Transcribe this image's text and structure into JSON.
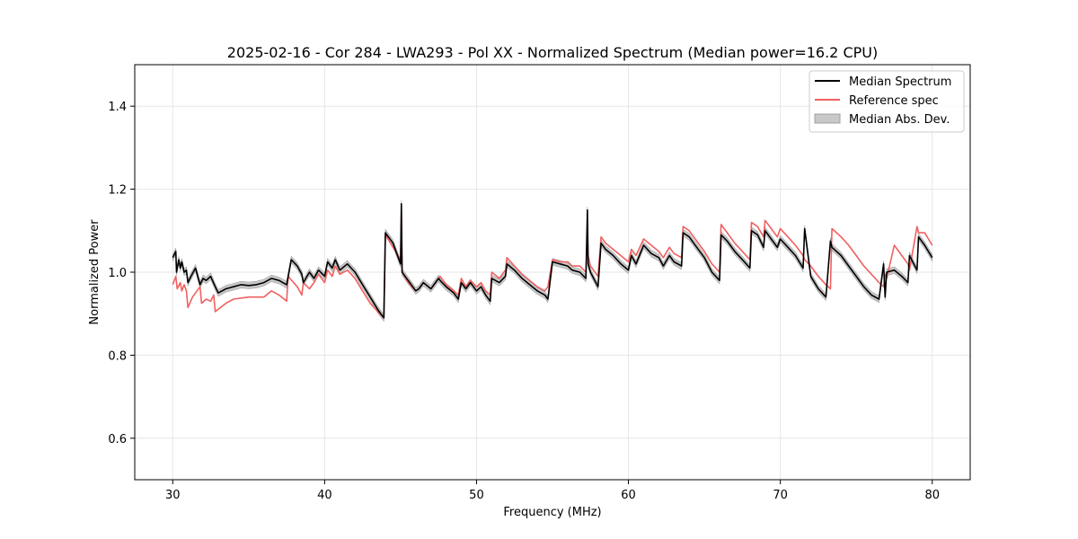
{
  "chart_data": {
    "type": "line",
    "title": "2025-02-16 - Cor 284 - LWA293 - Pol XX - Normalized Spectrum (Median power=16.2 CPU)",
    "xlabel": "Frequency (MHz)",
    "ylabel": "Normalized Power",
    "xlim": [
      27.5,
      82.5
    ],
    "ylim": [
      0.5,
      1.5
    ],
    "x_ticks": [
      30,
      40,
      50,
      60,
      70,
      80
    ],
    "x_tick_labels": [
      "30",
      "40",
      "50",
      "60",
      "70",
      "80"
    ],
    "y_ticks": [
      0.6,
      0.8,
      1.0,
      1.2,
      1.4
    ],
    "y_tick_labels": [
      "0.6",
      "0.8",
      "1.0",
      "1.2",
      "1.4"
    ],
    "grid": true,
    "legend_position": "top-right",
    "legend": [
      "Median Spectrum",
      "Reference spec",
      "Median Abs. Dev."
    ],
    "colors": {
      "median": "#000000",
      "reference": "#f06060",
      "mad_fill": "#c8c8c8",
      "mad_edge": "#a0a0a0",
      "grid": "#e6e6e6"
    },
    "series": [
      {
        "name": "Median Spectrum",
        "x": [
          30.0,
          30.2,
          30.25,
          30.4,
          30.5,
          30.6,
          30.75,
          30.9,
          31.0,
          31.2,
          31.5,
          31.8,
          32.0,
          32.2,
          32.5,
          32.8,
          33.0,
          33.5,
          34.0,
          34.5,
          35.0,
          35.5,
          36.0,
          36.5,
          37.0,
          37.5,
          37.8,
          38.2,
          38.5,
          38.6,
          39.0,
          39.3,
          39.6,
          40.0,
          40.2,
          40.5,
          40.7,
          41.0,
          41.5,
          42.0,
          42.5,
          43.0,
          43.5,
          43.9,
          44.0,
          44.5,
          45.0,
          45.05,
          45.1,
          45.5,
          46.0,
          46.2,
          46.5,
          47.0,
          47.5,
          47.6,
          48.0,
          48.5,
          48.8,
          49.0,
          49.3,
          49.6,
          50.0,
          50.3,
          50.6,
          50.9,
          51.0,
          51.5,
          51.9,
          52.0,
          52.5,
          53.0,
          53.5,
          54.0,
          54.5,
          54.7,
          55.0,
          55.5,
          56.0,
          56.3,
          56.8,
          57.2,
          57.3,
          57.35,
          57.5,
          58.0,
          58.2,
          58.5,
          59.0,
          59.5,
          60.0,
          60.2,
          60.5,
          61.0,
          61.5,
          62.0,
          62.3,
          62.7,
          63.0,
          63.5,
          63.6,
          64.0,
          64.5,
          65.0,
          65.5,
          66.0,
          66.1,
          66.5,
          67.0,
          67.5,
          68.0,
          68.1,
          68.5,
          68.9,
          69.0,
          69.5,
          69.8,
          70.0,
          70.5,
          71.0,
          71.5,
          71.6,
          72.0,
          72.5,
          73.0,
          73.3,
          73.4,
          74.0,
          74.5,
          75.0,
          75.5,
          76.0,
          76.5,
          76.8,
          76.9,
          77.0,
          77.5,
          78.0,
          78.4,
          78.5,
          79.0,
          79.1,
          79.5,
          80.0
        ],
        "values": [
          1.035,
          1.05,
          1.0,
          1.03,
          1.01,
          1.025,
          1.0,
          1.005,
          0.975,
          0.99,
          1.01,
          0.97,
          0.985,
          0.98,
          0.99,
          0.965,
          0.95,
          0.96,
          0.965,
          0.97,
          0.968,
          0.97,
          0.975,
          0.985,
          0.98,
          0.97,
          1.03,
          1.015,
          0.995,
          0.975,
          1.0,
          0.985,
          1.005,
          0.99,
          1.025,
          1.01,
          1.03,
          1.005,
          1.02,
          1.0,
          0.97,
          0.94,
          0.91,
          0.89,
          1.095,
          1.07,
          1.02,
          1.165,
          1.0,
          0.98,
          0.955,
          0.96,
          0.975,
          0.96,
          0.985,
          0.98,
          0.965,
          0.95,
          0.935,
          0.975,
          0.96,
          0.975,
          0.955,
          0.965,
          0.945,
          0.93,
          0.985,
          0.975,
          0.99,
          1.02,
          1.005,
          0.985,
          0.97,
          0.955,
          0.945,
          0.935,
          1.025,
          1.02,
          1.015,
          1.005,
          1.0,
          0.985,
          1.15,
          1.02,
          1.0,
          0.965,
          1.07,
          1.055,
          1.04,
          1.02,
          1.005,
          1.04,
          1.02,
          1.065,
          1.045,
          1.035,
          1.015,
          1.04,
          1.025,
          1.015,
          1.095,
          1.085,
          1.06,
          1.035,
          1.0,
          0.98,
          1.09,
          1.075,
          1.05,
          1.03,
          1.01,
          1.1,
          1.09,
          1.06,
          1.1,
          1.075,
          1.06,
          1.08,
          1.06,
          1.04,
          1.01,
          1.105,
          0.99,
          0.96,
          0.94,
          1.075,
          1.06,
          1.04,
          1.015,
          0.99,
          0.965,
          0.945,
          0.935,
          1.02,
          0.94,
          1.0,
          1.005,
          0.99,
          0.975,
          1.04,
          1.005,
          1.085,
          1.065,
          1.035
        ]
      },
      {
        "name": "Reference spec",
        "x": [
          30.0,
          30.2,
          30.3,
          30.5,
          30.6,
          30.75,
          30.9,
          31.0,
          31.3,
          31.8,
          31.9,
          32.2,
          32.5,
          32.7,
          32.8,
          33.5,
          34.0,
          35.0,
          36.0,
          36.5,
          37.0,
          37.5,
          37.6,
          38.2,
          38.5,
          38.6,
          39.0,
          39.3,
          39.6,
          40.0,
          40.2,
          40.5,
          40.7,
          41.0,
          41.5,
          42.0,
          42.5,
          43.0,
          43.5,
          43.9,
          44.0,
          44.5,
          45.0,
          45.05,
          45.1,
          45.5,
          46.0,
          46.2,
          46.5,
          47.0,
          47.5,
          47.6,
          48.0,
          48.5,
          48.8,
          49.0,
          49.3,
          49.6,
          50.0,
          50.3,
          50.6,
          50.9,
          51.0,
          51.5,
          51.9,
          52.0,
          52.5,
          53.0,
          53.5,
          54.0,
          54.5,
          54.7,
          55.0,
          55.5,
          56.0,
          56.3,
          56.8,
          57.2,
          57.3,
          57.35,
          57.5,
          58.0,
          58.2,
          58.5,
          59.0,
          59.5,
          60.0,
          60.2,
          60.5,
          61.0,
          61.5,
          62.0,
          62.3,
          62.7,
          63.0,
          63.5,
          63.6,
          64.0,
          64.5,
          65.0,
          65.5,
          66.0,
          66.1,
          66.5,
          67.0,
          67.5,
          68.0,
          68.1,
          68.5,
          68.9,
          69.0,
          69.5,
          69.8,
          70.0,
          70.5,
          71.0,
          71.5,
          71.6,
          72.0,
          72.5,
          73.0,
          73.3,
          73.4,
          74.0,
          74.5,
          75.0,
          75.5,
          76.0,
          76.5,
          76.8,
          76.9,
          77.0,
          77.5,
          78.0,
          78.4,
          78.5,
          79.0,
          79.1,
          79.5,
          80.0
        ],
        "values": [
          0.97,
          0.99,
          0.96,
          0.975,
          0.955,
          0.97,
          0.955,
          0.915,
          0.94,
          0.965,
          0.925,
          0.935,
          0.93,
          0.945,
          0.905,
          0.925,
          0.935,
          0.94,
          0.94,
          0.955,
          0.945,
          0.93,
          0.99,
          0.965,
          0.945,
          0.975,
          0.96,
          0.975,
          0.995,
          0.975,
          1.005,
          0.99,
          1.015,
          0.995,
          1.005,
          0.985,
          0.955,
          0.925,
          0.905,
          0.89,
          1.09,
          1.06,
          1.03,
          1.14,
          1.0,
          0.975,
          0.955,
          0.96,
          0.975,
          0.96,
          0.985,
          0.99,
          0.97,
          0.955,
          0.945,
          0.985,
          0.965,
          0.98,
          0.965,
          0.975,
          0.955,
          0.945,
          1.0,
          0.985,
          1.005,
          1.035,
          1.015,
          0.995,
          0.98,
          0.965,
          0.955,
          0.965,
          1.03,
          1.025,
          1.025,
          1.015,
          1.015,
          1.0,
          1.1,
          1.04,
          1.015,
          0.99,
          1.085,
          1.07,
          1.055,
          1.04,
          1.025,
          1.055,
          1.04,
          1.08,
          1.065,
          1.05,
          1.035,
          1.06,
          1.045,
          1.035,
          1.11,
          1.1,
          1.075,
          1.05,
          1.02,
          1.0,
          1.115,
          1.095,
          1.07,
          1.05,
          1.03,
          1.12,
          1.11,
          1.085,
          1.125,
          1.1,
          1.085,
          1.105,
          1.085,
          1.065,
          1.04,
          1.03,
          1.015,
          0.99,
          0.97,
          0.96,
          1.105,
          1.085,
          1.065,
          1.04,
          1.015,
          0.995,
          0.975,
          0.965,
          0.995,
          0.985,
          1.065,
          1.04,
          1.02,
          1.005,
          1.11,
          1.095,
          1.095,
          1.065
        ]
      }
    ],
    "mad_band": {
      "name": "Median Abs. Dev.",
      "base_series": "Median Spectrum",
      "half_width": 0.008
    }
  }
}
